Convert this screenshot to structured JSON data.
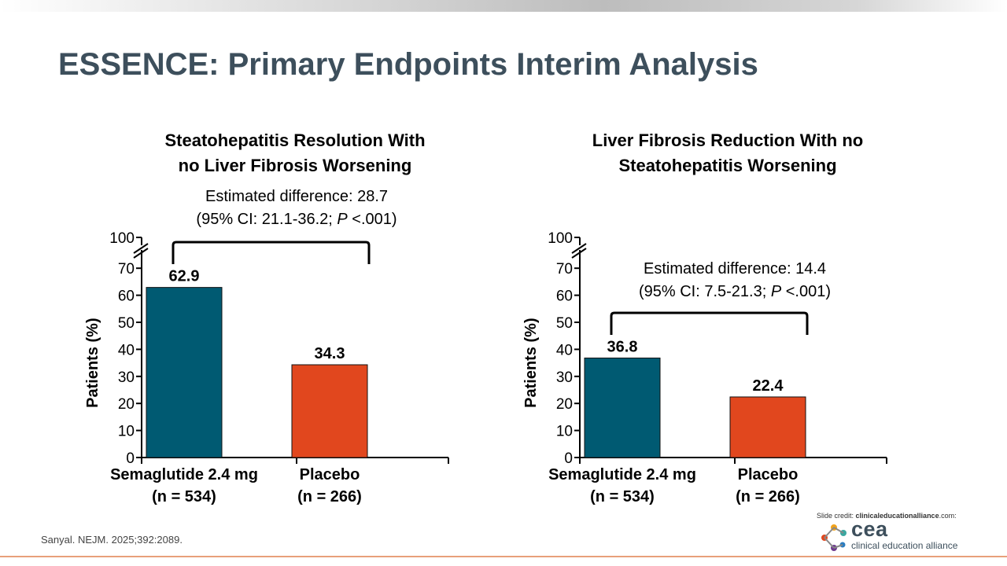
{
  "slide": {
    "title": "ESSENCE: Primary Endpoints Interim Analysis",
    "source": "Sanyal. NEJM. 2025;392:2089.",
    "credit_prefix": "Slide credit: ",
    "credit_site": "clinicaleducationalliance",
    "credit_suffix": ".com:",
    "logo_text": "cea",
    "logo_sub": "clinical education alliance",
    "colors": {
      "title": "#3d4f5c",
      "semaglutide": "#005a72",
      "placebo": "#e1471e"
    }
  },
  "chart_data": [
    {
      "type": "bar",
      "title_lines": [
        "Steatohepatitis Resolution With",
        "no Liver Fibrosis Worsening"
      ],
      "annotation_lines": [
        "Estimated difference: 28.7",
        "(95% CI: 21.1-36.2; P <.001)"
      ],
      "categories": [
        [
          "Semaglutide 2.4 mg",
          "(n = 534)"
        ],
        [
          "Placebo",
          "(n = 266)"
        ]
      ],
      "values": [
        62.9,
        34.3
      ],
      "value_labels": [
        "62.9",
        "34.3"
      ],
      "ylabel": "Patients (%)",
      "yticks": [
        "0",
        "10",
        "20",
        "30",
        "40",
        "50",
        "60",
        "70",
        "100"
      ],
      "ylim": [
        0,
        100
      ],
      "axis_break": "between 70 and 100"
    },
    {
      "type": "bar",
      "title_lines": [
        "Liver Fibrosis Reduction With no",
        "Steatohepatitis Worsening"
      ],
      "annotation_lines": [
        "Estimated difference: 14.4",
        "(95% CI: 7.5-21.3; P <.001)"
      ],
      "categories": [
        [
          "Semaglutide 2.4 mg",
          "(n = 534)"
        ],
        [
          "Placebo",
          "(n = 266)"
        ]
      ],
      "values": [
        36.8,
        22.4
      ],
      "value_labels": [
        "36.8",
        "22.4"
      ],
      "ylabel": "Patients (%)",
      "yticks": [
        "0",
        "10",
        "20",
        "30",
        "40",
        "50",
        "60",
        "70",
        "100"
      ],
      "ylim": [
        0,
        100
      ],
      "axis_break": "between 70 and 100"
    }
  ]
}
